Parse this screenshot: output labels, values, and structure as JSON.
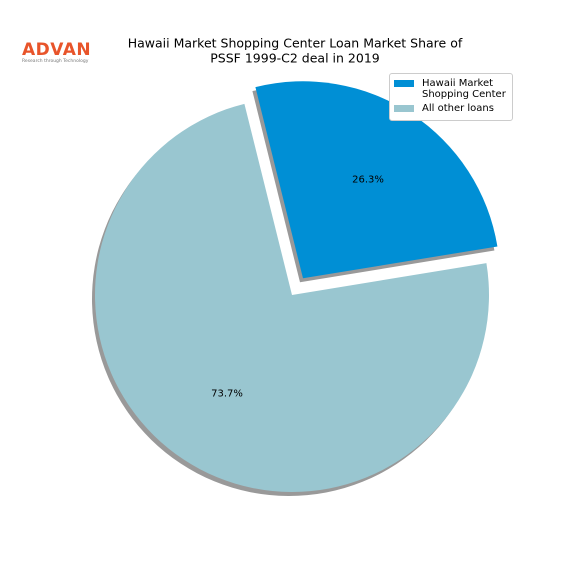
{
  "logo": {
    "name": "ADVAN",
    "tagline": "Research through Technology"
  },
  "chart_data": {
    "type": "pie",
    "title": [
      "Hawaii Market Shopping Center Loan Market Share of",
      "PSSF 1999-C2 deal in 2019"
    ],
    "categories": [
      "Hawaii Market Shopping Center",
      "All other loans"
    ],
    "values": [
      26.3,
      73.7
    ],
    "value_labels": [
      "26.3%",
      "73.7%"
    ],
    "colors": [
      "#008fd5",
      "#99c6d0"
    ],
    "explode": [
      true,
      false
    ],
    "shadow": true,
    "legend": "upper right"
  }
}
